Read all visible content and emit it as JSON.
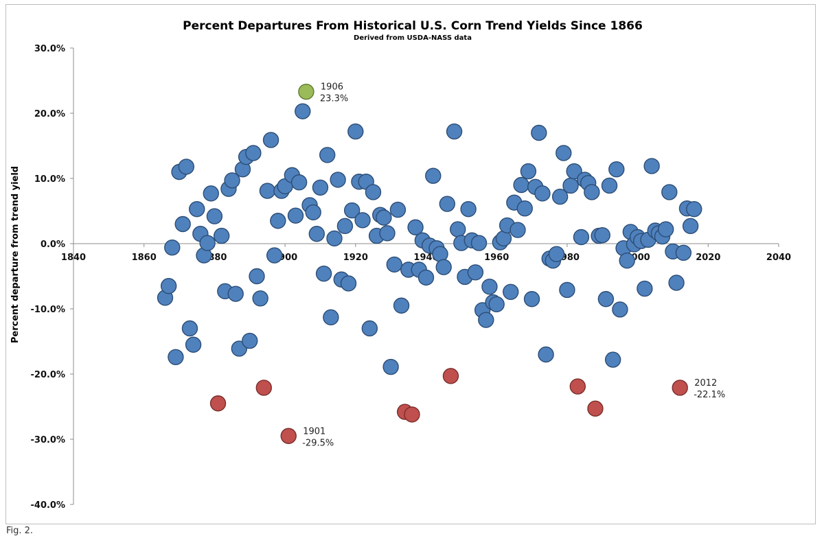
{
  "caption": "Fig. 2.",
  "chart_data": {
    "type": "scatter",
    "title": "Percent Departures From Historical U.S. Corn Trend Yields Since 1866",
    "subtitle": "Derived from USDA-NASS data",
    "xlabel": "",
    "ylabel": "Percent departure from trend yield",
    "xlim": [
      1840,
      2040
    ],
    "ylim": [
      -40,
      30
    ],
    "x_ticks": [
      1840,
      1860,
      1880,
      1900,
      1920,
      1940,
      1960,
      1980,
      2000,
      2020,
      2040
    ],
    "y_ticks": [
      {
        "value": 30,
        "label": "30.0%"
      },
      {
        "value": 20,
        "label": "20.0%"
      },
      {
        "value": 10,
        "label": "10.0%"
      },
      {
        "value": 0,
        "label": "0.0%"
      },
      {
        "value": -10,
        "label": "-10.0%"
      },
      {
        "value": -20,
        "label": "-20.0%"
      },
      {
        "value": -30,
        "label": "-30.0%"
      },
      {
        "value": -40,
        "label": "-40.0%"
      }
    ],
    "grid": false,
    "colors": {
      "normal": "#4f81bd",
      "high": "#9bbb59",
      "low": "#c0504d"
    },
    "points": [
      {
        "x": 1866,
        "y": -8.3
      },
      {
        "x": 1867,
        "y": -6.5
      },
      {
        "x": 1868,
        "y": -0.6
      },
      {
        "x": 1869,
        "y": -17.4
      },
      {
        "x": 1870,
        "y": 11.0
      },
      {
        "x": 1871,
        "y": 3.0
      },
      {
        "x": 1872,
        "y": 11.8
      },
      {
        "x": 1873,
        "y": -13.0
      },
      {
        "x": 1874,
        "y": -15.5
      },
      {
        "x": 1875,
        "y": 5.3
      },
      {
        "x": 1876,
        "y": 1.5
      },
      {
        "x": 1877,
        "y": -1.8
      },
      {
        "x": 1878,
        "y": 0.1
      },
      {
        "x": 1879,
        "y": 7.7
      },
      {
        "x": 1880,
        "y": 4.2
      },
      {
        "x": 1881,
        "y": -24.5,
        "c": "low"
      },
      {
        "x": 1882,
        "y": 1.2
      },
      {
        "x": 1883,
        "y": -7.3
      },
      {
        "x": 1884,
        "y": 8.4
      },
      {
        "x": 1885,
        "y": 9.7
      },
      {
        "x": 1886,
        "y": -7.7
      },
      {
        "x": 1887,
        "y": -16.1
      },
      {
        "x": 1888,
        "y": 11.4
      },
      {
        "x": 1889,
        "y": 13.3
      },
      {
        "x": 1890,
        "y": -14.9
      },
      {
        "x": 1891,
        "y": 13.9
      },
      {
        "x": 1892,
        "y": -5.0
      },
      {
        "x": 1893,
        "y": -8.4
      },
      {
        "x": 1894,
        "y": -22.1,
        "c": "low"
      },
      {
        "x": 1895,
        "y": 8.1
      },
      {
        "x": 1896,
        "y": 15.9
      },
      {
        "x": 1897,
        "y": -1.8
      },
      {
        "x": 1898,
        "y": 3.5
      },
      {
        "x": 1899,
        "y": 8.1
      },
      {
        "x": 1900,
        "y": 8.8
      },
      {
        "x": 1901,
        "y": -29.5,
        "c": "low"
      },
      {
        "x": 1902,
        "y": 10.5
      },
      {
        "x": 1903,
        "y": 4.3
      },
      {
        "x": 1904,
        "y": 9.4
      },
      {
        "x": 1905,
        "y": 20.3
      },
      {
        "x": 1906,
        "y": 23.3,
        "c": "high"
      },
      {
        "x": 1907,
        "y": 5.9
      },
      {
        "x": 1908,
        "y": 4.8
      },
      {
        "x": 1909,
        "y": 1.5
      },
      {
        "x": 1910,
        "y": 8.6
      },
      {
        "x": 1911,
        "y": -4.6
      },
      {
        "x": 1912,
        "y": 13.6
      },
      {
        "x": 1913,
        "y": -11.3
      },
      {
        "x": 1914,
        "y": 0.8
      },
      {
        "x": 1915,
        "y": 9.8
      },
      {
        "x": 1916,
        "y": -5.5
      },
      {
        "x": 1917,
        "y": 2.7
      },
      {
        "x": 1918,
        "y": -6.1
      },
      {
        "x": 1919,
        "y": 5.1
      },
      {
        "x": 1920,
        "y": 17.2
      },
      {
        "x": 1921,
        "y": 9.5
      },
      {
        "x": 1922,
        "y": 3.6
      },
      {
        "x": 1923,
        "y": 9.5
      },
      {
        "x": 1924,
        "y": -13.0
      },
      {
        "x": 1925,
        "y": 7.9
      },
      {
        "x": 1926,
        "y": 1.2
      },
      {
        "x": 1927,
        "y": 4.4
      },
      {
        "x": 1928,
        "y": 4.0
      },
      {
        "x": 1929,
        "y": 1.6
      },
      {
        "x": 1930,
        "y": -18.9
      },
      {
        "x": 1931,
        "y": -3.2
      },
      {
        "x": 1932,
        "y": 5.2
      },
      {
        "x": 1933,
        "y": -9.5
      },
      {
        "x": 1934,
        "y": -25.8,
        "c": "low"
      },
      {
        "x": 1935,
        "y": -4.0
      },
      {
        "x": 1936,
        "y": -26.2,
        "c": "low"
      },
      {
        "x": 1937,
        "y": 2.5
      },
      {
        "x": 1938,
        "y": -4.0
      },
      {
        "x": 1939,
        "y": 0.5
      },
      {
        "x": 1940,
        "y": -5.2
      },
      {
        "x": 1941,
        "y": -0.3
      },
      {
        "x": 1942,
        "y": 10.4
      },
      {
        "x": 1943,
        "y": -0.7
      },
      {
        "x": 1944,
        "y": -1.6
      },
      {
        "x": 1945,
        "y": -3.6
      },
      {
        "x": 1946,
        "y": 6.1
      },
      {
        "x": 1947,
        "y": -20.3,
        "c": "low"
      },
      {
        "x": 1948,
        "y": 17.2
      },
      {
        "x": 1949,
        "y": 2.2
      },
      {
        "x": 1950,
        "y": 0.1
      },
      {
        "x": 1951,
        "y": -5.1
      },
      {
        "x": 1952,
        "y": 5.3
      },
      {
        "x": 1953,
        "y": 0.5
      },
      {
        "x": 1954,
        "y": -4.4
      },
      {
        "x": 1955,
        "y": 0.1
      },
      {
        "x": 1956,
        "y": -10.2
      },
      {
        "x": 1957,
        "y": -11.7
      },
      {
        "x": 1958,
        "y": -6.6
      },
      {
        "x": 1959,
        "y": -9.0
      },
      {
        "x": 1960,
        "y": -9.3
      },
      {
        "x": 1961,
        "y": 0.2
      },
      {
        "x": 1962,
        "y": 0.8
      },
      {
        "x": 1963,
        "y": 2.8
      },
      {
        "x": 1964,
        "y": -7.4
      },
      {
        "x": 1965,
        "y": 6.3
      },
      {
        "x": 1966,
        "y": 2.1
      },
      {
        "x": 1967,
        "y": 9.0
      },
      {
        "x": 1968,
        "y": 5.4
      },
      {
        "x": 1969,
        "y": 11.1
      },
      {
        "x": 1970,
        "y": -8.5
      },
      {
        "x": 1971,
        "y": 8.7
      },
      {
        "x": 1972,
        "y": 17.0
      },
      {
        "x": 1973,
        "y": 7.7
      },
      {
        "x": 1974,
        "y": -17.0
      },
      {
        "x": 1975,
        "y": -2.3
      },
      {
        "x": 1976,
        "y": -2.6
      },
      {
        "x": 1977,
        "y": -1.6
      },
      {
        "x": 1978,
        "y": 7.2
      },
      {
        "x": 1979,
        "y": 13.9
      },
      {
        "x": 1980,
        "y": -7.1
      },
      {
        "x": 1981,
        "y": 8.9
      },
      {
        "x": 1982,
        "y": 11.1
      },
      {
        "x": 1983,
        "y": -21.9,
        "c": "low"
      },
      {
        "x": 1984,
        "y": 1.0
      },
      {
        "x": 1985,
        "y": 9.8
      },
      {
        "x": 1986,
        "y": 9.3
      },
      {
        "x": 1987,
        "y": 7.9
      },
      {
        "x": 1988,
        "y": -25.3,
        "c": "low"
      },
      {
        "x": 1989,
        "y": 1.2
      },
      {
        "x": 1990,
        "y": 1.3
      },
      {
        "x": 1991,
        "y": -8.5
      },
      {
        "x": 1992,
        "y": 8.9
      },
      {
        "x": 1993,
        "y": -17.8
      },
      {
        "x": 1994,
        "y": 11.4
      },
      {
        "x": 1995,
        "y": -10.1
      },
      {
        "x": 1996,
        "y": -0.7
      },
      {
        "x": 1997,
        "y": -2.6
      },
      {
        "x": 1998,
        "y": 1.8
      },
      {
        "x": 1999,
        "y": -0.1
      },
      {
        "x": 2000,
        "y": 1.0
      },
      {
        "x": 2001,
        "y": 0.4
      },
      {
        "x": 2002,
        "y": -6.9
      },
      {
        "x": 2003,
        "y": 0.6
      },
      {
        "x": 2004,
        "y": 11.9
      },
      {
        "x": 2005,
        "y": 2.0
      },
      {
        "x": 2006,
        "y": 1.6
      },
      {
        "x": 2007,
        "y": 1.1
      },
      {
        "x": 2008,
        "y": 2.2
      },
      {
        "x": 2009,
        "y": 7.9
      },
      {
        "x": 2010,
        "y": -1.2
      },
      {
        "x": 2011,
        "y": -6.0
      },
      {
        "x": 2012,
        "y": -22.1,
        "c": "low"
      },
      {
        "x": 2013,
        "y": -1.4
      },
      {
        "x": 2014,
        "y": 5.4
      },
      {
        "x": 2015,
        "y": 2.7
      },
      {
        "x": 2016,
        "y": 5.3
      }
    ],
    "annotations": [
      {
        "x": 1906,
        "y": 23.3,
        "year": "1906",
        "value": "23.3%"
      },
      {
        "x": 1901,
        "y": -29.5,
        "year": "1901",
        "value": "-29.5%"
      },
      {
        "x": 2012,
        "y": -22.1,
        "year": "2012",
        "value": "-22.1%"
      }
    ]
  }
}
